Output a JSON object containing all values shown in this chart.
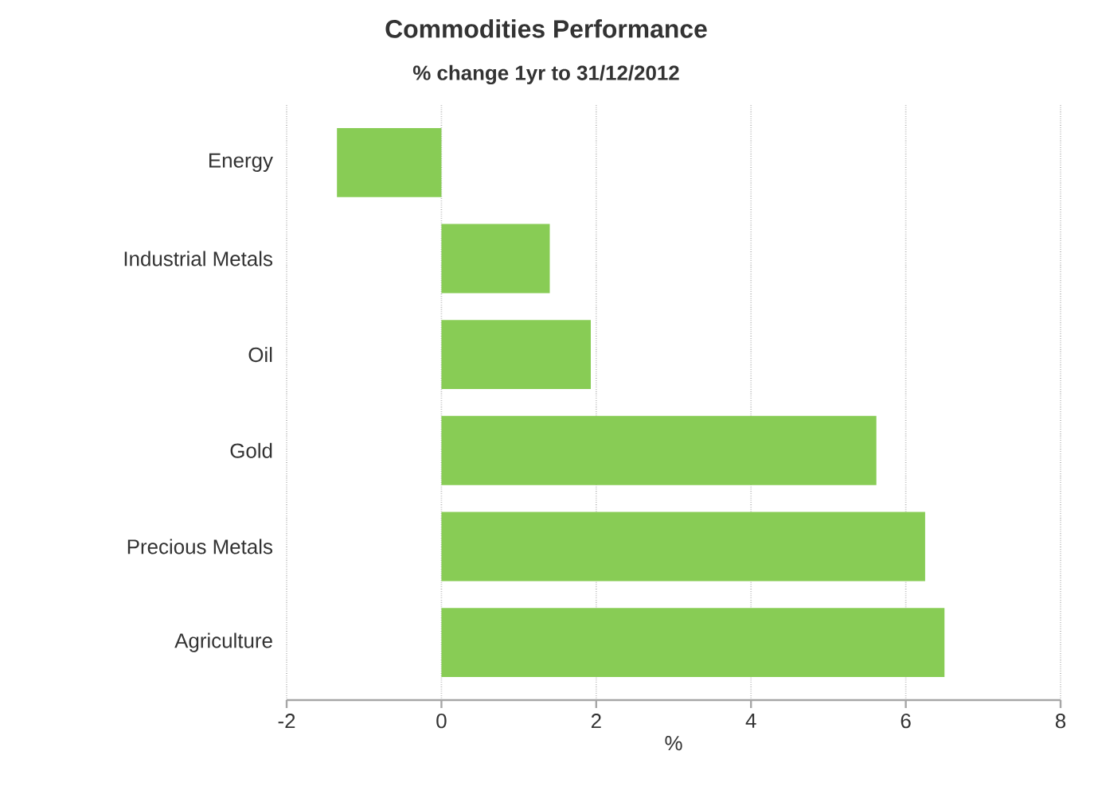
{
  "chart_data": {
    "type": "bar",
    "orientation": "horizontal",
    "title": "Commodities Performance",
    "subtitle": "% change 1yr to 31/12/2012",
    "xlabel": "%",
    "categories": [
      "Energy",
      "Industrial Metals",
      "Oil",
      "Gold",
      "Precious Metals",
      "Agriculture"
    ],
    "values": [
      -1.35,
      1.4,
      1.93,
      5.62,
      6.25,
      6.5
    ],
    "color": "#88cc55",
    "xlim": [
      -2,
      8
    ],
    "xticks": [
      -2,
      0,
      2,
      4,
      6,
      8
    ],
    "grid": "x"
  }
}
